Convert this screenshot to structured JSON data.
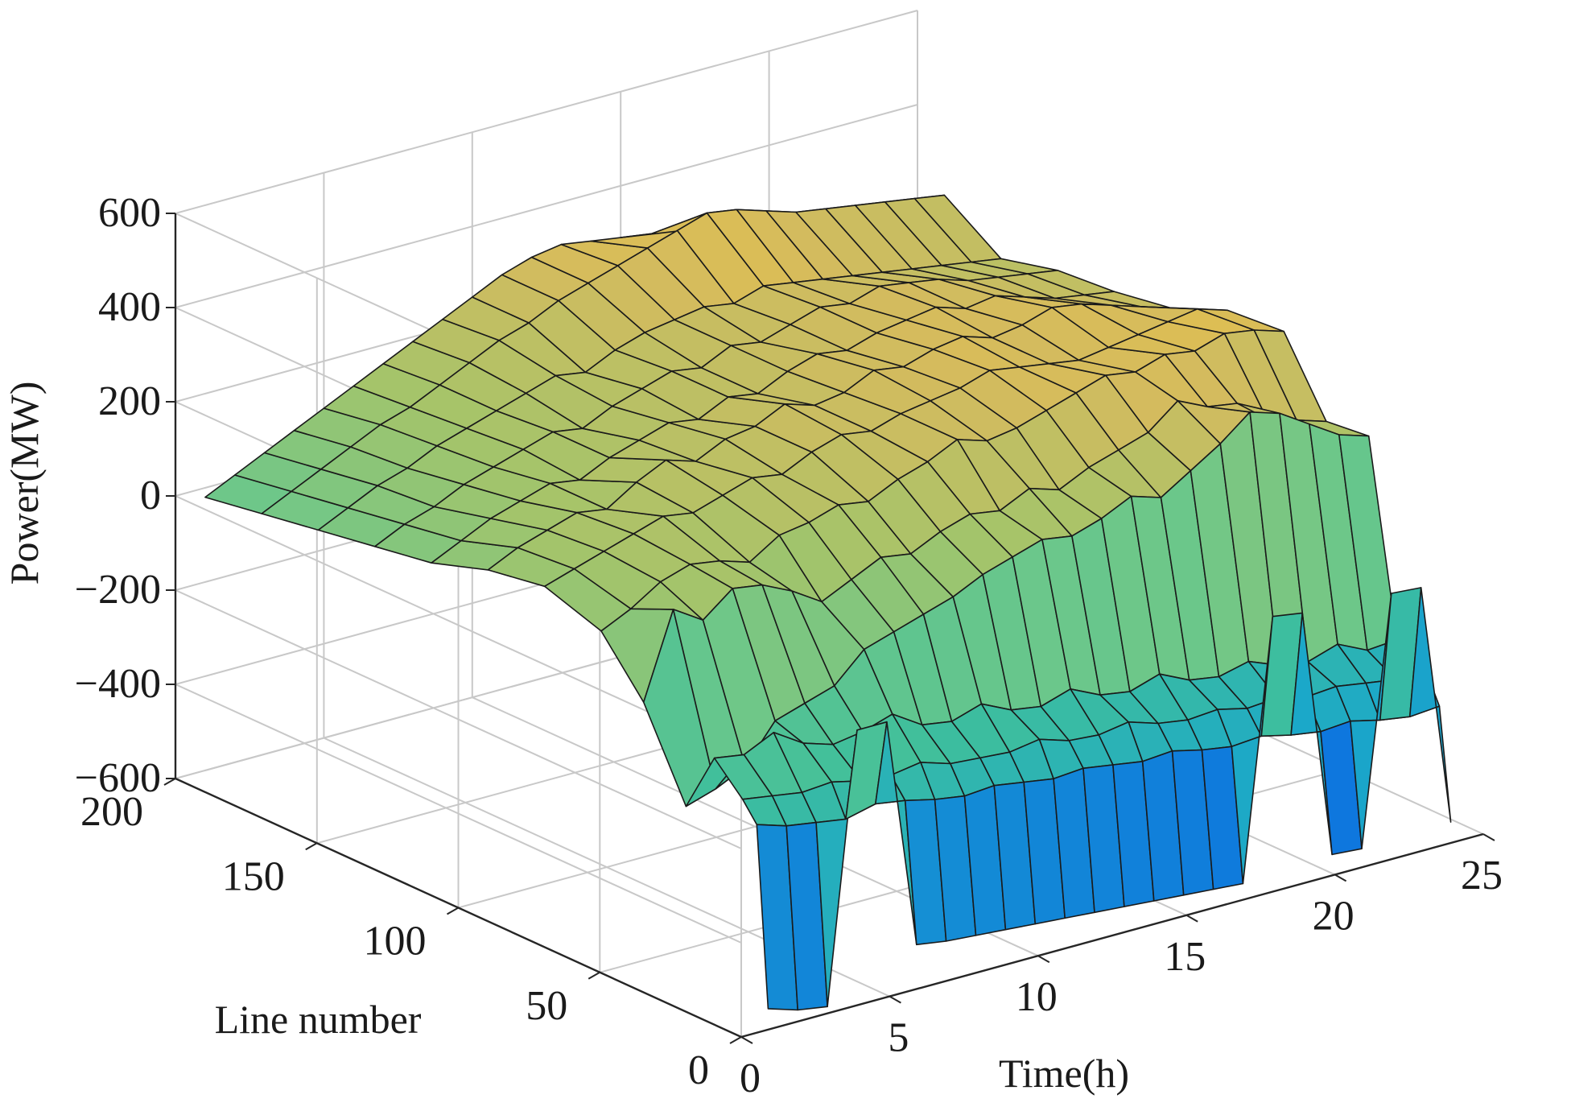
{
  "chart_data": {
    "type": "surface3d",
    "title": "",
    "xlabel": "Time(h)",
    "ylabel": "Line number",
    "zlabel": "Power(MW)",
    "xlim": [
      0,
      25
    ],
    "ylim": [
      0,
      200
    ],
    "zlim": [
      -600,
      600
    ],
    "x_ticks": [
      "0",
      "5",
      "10",
      "15",
      "20",
      "25"
    ],
    "y_ticks": [
      "0",
      "50",
      "100",
      "150",
      "200"
    ],
    "z_ticks": [
      "−600",
      "−400",
      "−200",
      "0",
      "200",
      "400",
      "600"
    ],
    "grid": true,
    "colormap": [
      "#352a87",
      "#0d72e0",
      "#1ba8c9",
      "#3fbf9c",
      "#6cc78a",
      "#a5c46a",
      "#d4bb5e",
      "#f9c834",
      "#f9fb0e"
    ],
    "time_hours": [
      1,
      2,
      3,
      4,
      5,
      6,
      7,
      8,
      9,
      10,
      11,
      12,
      13,
      14,
      15,
      16,
      17,
      18,
      19,
      20,
      21,
      22,
      23,
      24
    ],
    "series": [
      {
        "line": 1,
        "values": [
          -560,
          -580,
          -590,
          -20,
          -20,
          -510,
          -520,
          -525,
          -530,
          -535,
          -540,
          -545,
          -550,
          -555,
          -560,
          -565,
          -570,
          -20,
          -30,
          -560,
          -565,
          -40,
          -45,
          -560
        ]
      },
      {
        "line": 5,
        "values": [
          -180,
          -200,
          -210,
          -220,
          -205,
          -215,
          -230,
          -240,
          -235,
          -245,
          -255,
          -250,
          -260,
          -270,
          -265,
          -280,
          -290,
          -285,
          -300,
          -310,
          -305,
          -320,
          -330,
          -325
        ]
      },
      {
        "line": 10,
        "values": [
          -140,
          -150,
          -160,
          -155,
          -170,
          -175,
          -165,
          -185,
          -190,
          -195,
          -185,
          -205,
          -210,
          -200,
          -220,
          -230,
          -225,
          -240,
          -235,
          -250,
          -245,
          -255,
          -265,
          -260
        ]
      },
      {
        "line": 20,
        "values": [
          -80,
          -90,
          -60,
          -100,
          -120,
          -110,
          -90,
          -130,
          -140,
          -120,
          -150,
          -160,
          -140,
          -170,
          -180,
          -160,
          -190,
          -200,
          -185,
          -210,
          -220,
          -200,
          -230,
          -225
        ]
      },
      {
        "line": 30,
        "values": [
          -210,
          -190,
          -160,
          -80,
          -60,
          -40,
          20,
          40,
          60,
          80,
          110,
          130,
          150,
          140,
          160,
          190,
          170,
          210,
          250,
          300,
          280,
          240,
          200,
          180
        ]
      },
      {
        "line": 45,
        "values": [
          -30,
          150,
          110,
          160,
          150,
          120,
          80,
          110,
          140,
          130,
          160,
          180,
          170,
          200,
          180,
          210,
          230,
          250,
          300,
          270,
          260,
          210,
          190,
          170
        ]
      },
      {
        "line": 60,
        "values": [
          80,
          110,
          150,
          170,
          160,
          140,
          180,
          190,
          210,
          200,
          230,
          250,
          280,
          260,
          270,
          290,
          310,
          330,
          320,
          340,
          330,
          350,
          340,
          320
        ]
      },
      {
        "line": 80,
        "values": [
          120,
          140,
          160,
          180,
          200,
          190,
          210,
          230,
          220,
          250,
          270,
          260,
          280,
          290,
          300,
          320,
          310,
          300,
          290,
          300,
          310,
          320,
          330,
          310
        ]
      },
      {
        "line": 100,
        "values": [
          100,
          130,
          150,
          170,
          160,
          200,
          230,
          210,
          240,
          250,
          280,
          260,
          270,
          300,
          290,
          310,
          320,
          300,
          310,
          330,
          320,
          300,
          280,
          260
        ]
      },
      {
        "line": 120,
        "values": [
          60,
          90,
          120,
          140,
          160,
          150,
          180,
          200,
          220,
          210,
          240,
          230,
          260,
          280,
          270,
          290,
          300,
          310,
          290,
          300,
          280,
          260,
          250,
          240
        ]
      },
      {
        "line": 140,
        "values": [
          40,
          70,
          90,
          120,
          140,
          160,
          180,
          170,
          200,
          220,
          240,
          230,
          260,
          250,
          270,
          290,
          280,
          300,
          290,
          280,
          260,
          250,
          240,
          230
        ]
      },
      {
        "line": 160,
        "values": [
          20,
          50,
          80,
          100,
          130,
          150,
          170,
          190,
          210,
          200,
          230,
          250,
          260,
          270,
          260,
          280,
          270,
          260,
          250,
          240,
          230,
          220,
          210,
          200
        ]
      },
      {
        "line": 180,
        "values": [
          0,
          30,
          60,
          90,
          120,
          140,
          170,
          200,
          230,
          250,
          280,
          300,
          320,
          340,
          360,
          380,
          370,
          350,
          330,
          320,
          310,
          300,
          290,
          280
        ]
      },
      {
        "line": 200,
        "values": [
          -20,
          10,
          40,
          70,
          100,
          130,
          160,
          190,
          220,
          250,
          280,
          300,
          310,
          300,
          290,
          280,
          270,
          260,
          250,
          240,
          230,
          220,
          210,
          200
        ]
      }
    ]
  }
}
